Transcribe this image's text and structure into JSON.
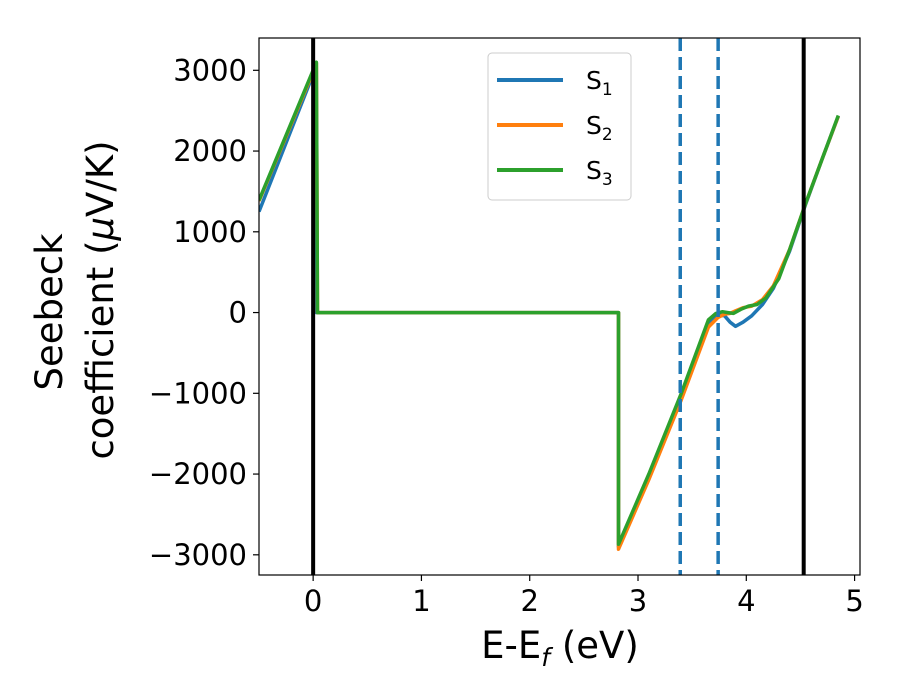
{
  "chart_data": {
    "type": "line",
    "xlabel_main": "E-E",
    "xlabel_sub": "f",
    "xlabel_unit": " (eV)",
    "ylabel_line1": "Seebeck",
    "ylabel_line2_pre": "coefficient  (",
    "ylabel_mu": "μ",
    "ylabel_line2_post": "V/K)",
    "xlim": [
      -0.5,
      5.05
    ],
    "ylim": [
      -3250,
      3400
    ],
    "x_ticks": [
      {
        "value": 0,
        "label": "0"
      },
      {
        "value": 1,
        "label": "1"
      },
      {
        "value": 2,
        "label": "2"
      },
      {
        "value": 3,
        "label": "3"
      },
      {
        "value": 4,
        "label": "4"
      },
      {
        "value": 5,
        "label": "5"
      }
    ],
    "y_ticks": [
      {
        "value": 3000,
        "label": "3000"
      },
      {
        "value": 2000,
        "label": "2000"
      },
      {
        "value": 1000,
        "label": "1000"
      },
      {
        "value": 0,
        "label": "0"
      },
      {
        "value": -1000,
        "label": "−1000"
      },
      {
        "value": -2000,
        "label": "−2000"
      },
      {
        "value": -3000,
        "label": "−3000"
      }
    ],
    "grid": false,
    "legend_position": "top-center",
    "vertical_lines": [
      {
        "x": 0.0,
        "style": "solid",
        "color": "#000000"
      },
      {
        "x": 4.53,
        "style": "solid",
        "color": "#000000"
      },
      {
        "x": 3.39,
        "style": "dashed",
        "color": "#1f77b4"
      },
      {
        "x": 3.74,
        "style": "dashed",
        "color": "#1f77b4"
      }
    ],
    "series": [
      {
        "name": "S",
        "subscript": "1",
        "color": "#1f77b4",
        "points": [
          [
            -0.5,
            1250
          ],
          [
            0.0,
            2950
          ],
          [
            0.02,
            3000
          ],
          [
            0.03,
            0
          ],
          [
            2.82,
            0
          ],
          [
            2.82,
            -2900
          ],
          [
            3.1,
            -2020
          ],
          [
            3.4,
            -1050
          ],
          [
            3.65,
            -120
          ],
          [
            3.74,
            -30
          ],
          [
            3.8,
            -40
          ],
          [
            3.85,
            -120
          ],
          [
            3.9,
            -170
          ],
          [
            3.97,
            -120
          ],
          [
            4.05,
            -40
          ],
          [
            4.15,
            100
          ],
          [
            4.25,
            300
          ],
          [
            4.4,
            760
          ],
          [
            4.55,
            1350
          ],
          [
            4.7,
            1900
          ],
          [
            4.85,
            2430
          ]
        ]
      },
      {
        "name": "S",
        "subscript": "2",
        "color": "#ff7f0e",
        "points": [
          [
            -0.5,
            1380
          ],
          [
            0.0,
            2980
          ],
          [
            0.03,
            3090
          ],
          [
            0.04,
            0
          ],
          [
            2.82,
            0
          ],
          [
            2.82,
            -2930
          ],
          [
            3.1,
            -2070
          ],
          [
            3.4,
            -1080
          ],
          [
            3.65,
            -180
          ],
          [
            3.74,
            -60
          ],
          [
            3.8,
            -20
          ],
          [
            3.85,
            -10
          ],
          [
            3.9,
            20
          ],
          [
            3.97,
            60
          ],
          [
            4.05,
            80
          ],
          [
            4.15,
            160
          ],
          [
            4.25,
            330
          ],
          [
            4.4,
            780
          ],
          [
            4.55,
            1360
          ],
          [
            4.7,
            1900
          ],
          [
            4.85,
            2430
          ]
        ]
      },
      {
        "name": "S",
        "subscript": "3",
        "color": "#2ca02c",
        "points": [
          [
            -0.5,
            1390
          ],
          [
            0.0,
            3000
          ],
          [
            0.03,
            3100
          ],
          [
            0.04,
            0
          ],
          [
            2.82,
            0
          ],
          [
            2.82,
            -2870
          ],
          [
            3.1,
            -2000
          ],
          [
            3.4,
            -1000
          ],
          [
            3.65,
            -90
          ],
          [
            3.72,
            -10
          ],
          [
            3.78,
            10
          ],
          [
            3.83,
            0
          ],
          [
            3.88,
            -10
          ],
          [
            3.95,
            40
          ],
          [
            4.02,
            80
          ],
          [
            4.1,
            100
          ],
          [
            4.18,
            180
          ],
          [
            4.3,
            420
          ],
          [
            4.4,
            780
          ],
          [
            4.55,
            1360
          ],
          [
            4.7,
            1900
          ],
          [
            4.85,
            2440
          ]
        ]
      }
    ]
  }
}
